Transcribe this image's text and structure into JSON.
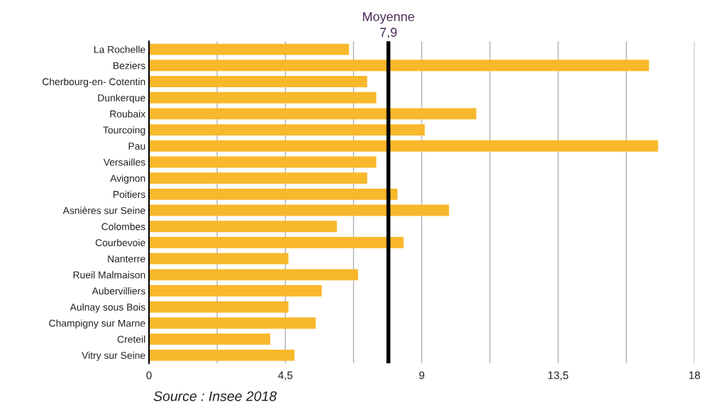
{
  "chart_data": {
    "type": "bar",
    "orientation": "horizontal",
    "categories": [
      "La Rochelle",
      "Beziers",
      "Cherbourg-en- Cotentin",
      "Dunkerque",
      "Roubaix",
      "Tourcoing",
      "Pau",
      "Versailles",
      "Avignon",
      "Poitiers",
      "Asnières sur Seine",
      "Colombes",
      "Courbevoie",
      "Nanterre",
      "Rueil Malmaison",
      "Aubervilliers",
      "Aulnay sous Bois",
      "Champigny sur Marne",
      "Creteil",
      "Vitry sur Seine"
    ],
    "values": [
      6.6,
      16.5,
      7.2,
      7.5,
      10.8,
      9.1,
      16.8,
      7.5,
      7.2,
      8.2,
      9.9,
      6.2,
      8.4,
      4.6,
      6.9,
      5.7,
      4.6,
      5.5,
      4.0,
      4.8
    ],
    "color": "#f8b82b",
    "xlim": [
      0,
      18
    ],
    "xticks": [
      {
        "value": 0,
        "label": "0"
      },
      {
        "value": 2.25,
        "label": null
      },
      {
        "value": 4.5,
        "label": "4,5"
      },
      {
        "value": 6.75,
        "label": null
      },
      {
        "value": 9,
        "label": "9"
      },
      {
        "value": 11.25,
        "label": null
      },
      {
        "value": 13.5,
        "label": "13,5"
      },
      {
        "value": 15.75,
        "label": null
      },
      {
        "value": 18,
        "label": "18"
      }
    ],
    "grid": "x",
    "ref_lines": [
      {
        "axis": "x",
        "value": 7.9,
        "label": "Moyenne\n7,9",
        "color": "#000000"
      }
    ],
    "annotations": [
      "Source : Insee 2018"
    ]
  }
}
